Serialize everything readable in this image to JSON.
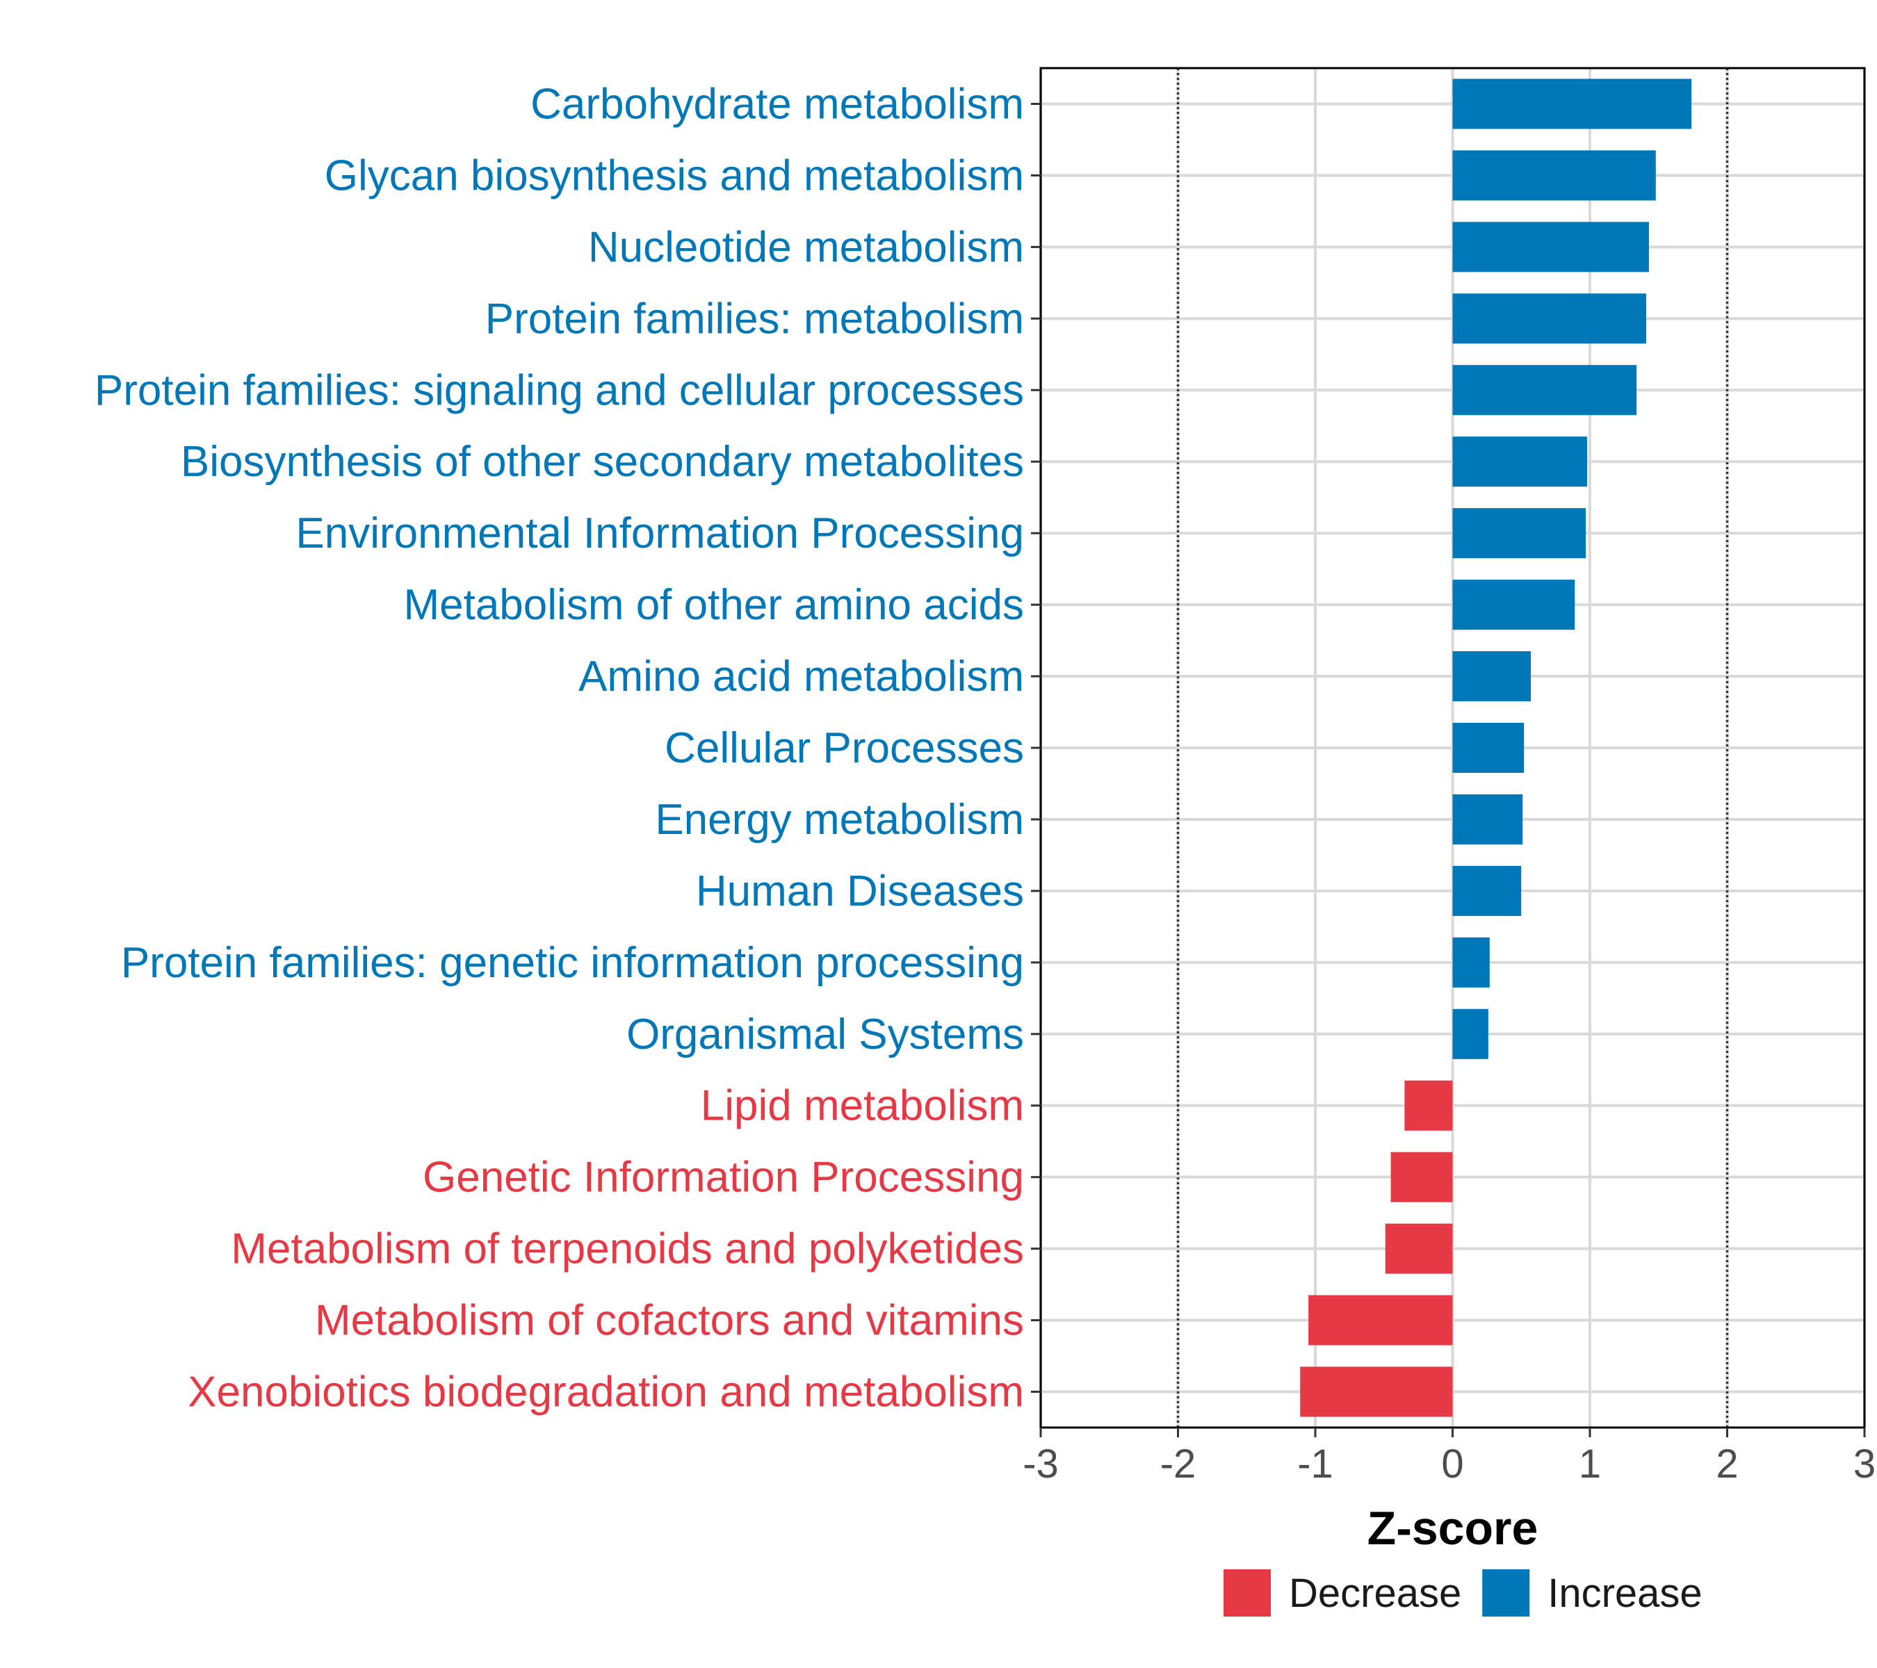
{
  "chart_data": {
    "type": "bar",
    "orientation": "horizontal",
    "xlabel": "Z-score",
    "ylabel": "",
    "xlim": [
      -3,
      3
    ],
    "xticks": [
      "-3",
      "-2",
      "-1",
      "0",
      "1",
      "2",
      "3"
    ],
    "threshold_lines": [
      -2,
      2
    ],
    "grid": true,
    "legend_position": "bottom",
    "legend": [
      {
        "label": "Decrease",
        "color": "#E63946"
      },
      {
        "label": "Increase",
        "color": "#0077B6"
      }
    ],
    "categories": [
      "Carbohydrate metabolism",
      "Glycan biosynthesis and metabolism",
      "Nucleotide metabolism",
      "Protein families: metabolism",
      "Protein families: signaling and cellular processes",
      "Biosynthesis of other secondary metabolites",
      "Environmental Information Processing",
      "Metabolism of other amino acids",
      "Amino acid metabolism",
      "Cellular Processes",
      "Energy metabolism",
      "Human Diseases",
      "Protein families: genetic information processing",
      "Organismal Systems",
      "Lipid metabolism",
      "Genetic Information Processing",
      "Metabolism of terpenoids and polyketides",
      "Metabolism of cofactors and vitamins",
      "Xenobiotics biodegradation and metabolism"
    ],
    "values": [
      1.74,
      1.48,
      1.43,
      1.41,
      1.34,
      0.98,
      0.97,
      0.89,
      0.57,
      0.52,
      0.51,
      0.5,
      0.27,
      0.26,
      -0.35,
      -0.45,
      -0.49,
      -1.05,
      -1.11
    ],
    "directions": [
      "Increase",
      "Increase",
      "Increase",
      "Increase",
      "Increase",
      "Increase",
      "Increase",
      "Increase",
      "Increase",
      "Increase",
      "Increase",
      "Increase",
      "Increase",
      "Increase",
      "Decrease",
      "Decrease",
      "Decrease",
      "Decrease",
      "Decrease"
    ]
  }
}
